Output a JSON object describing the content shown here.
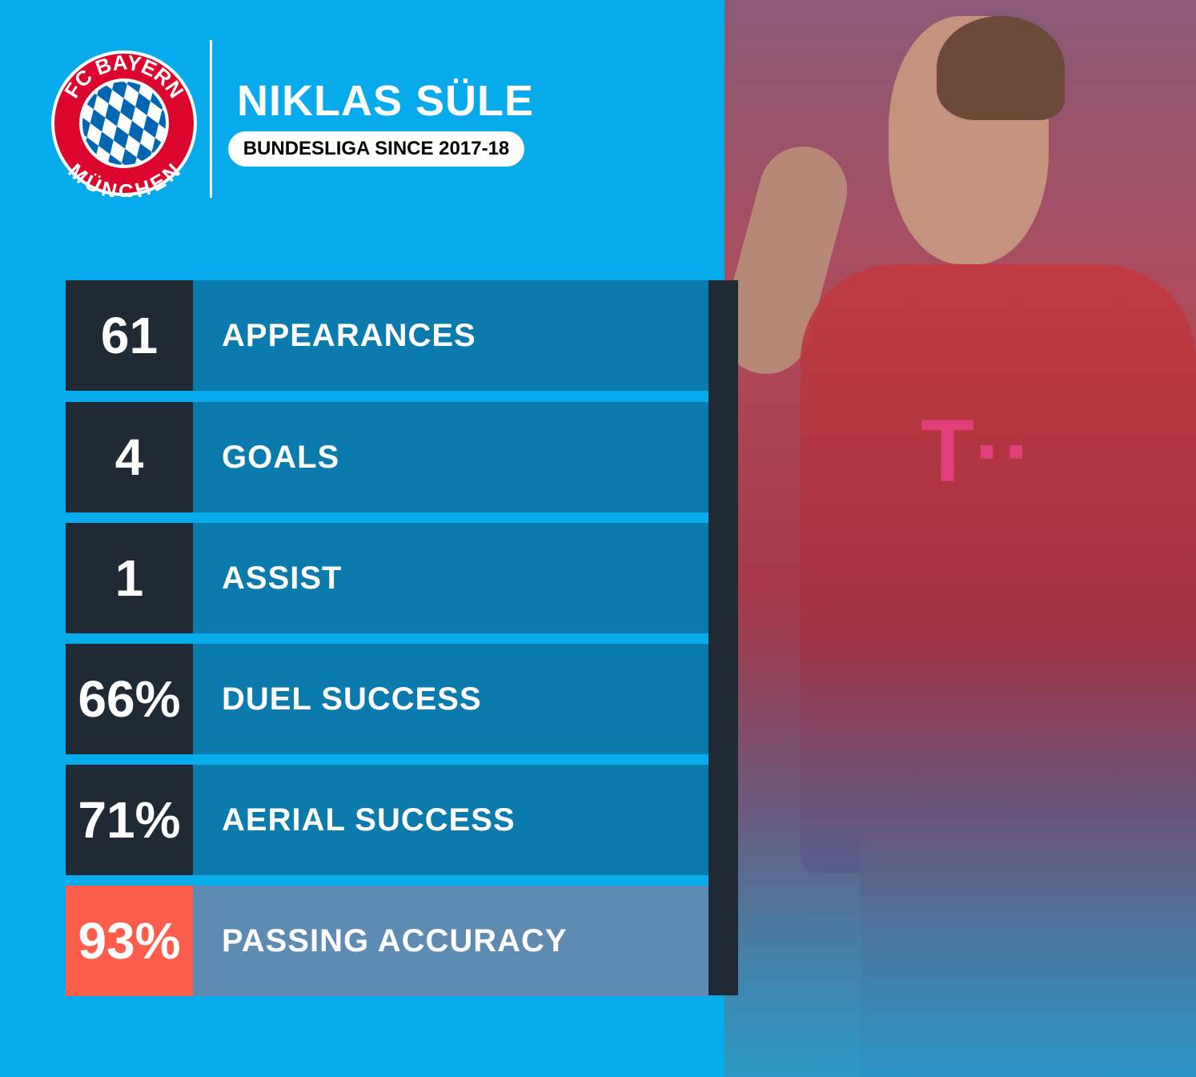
{
  "club": {
    "logo_text_top": "FC BAYERN",
    "logo_text_bottom": "MÜNCHEN",
    "colors": {
      "red": "#dc052d",
      "blue": "#0066b2"
    }
  },
  "player": {
    "name": "NIKLAS SÜLE",
    "subtitle": "BUNDESLIGA SINCE 2017-18"
  },
  "stats": [
    {
      "value": "61",
      "label": "APPEARANCES",
      "highlight": false
    },
    {
      "value": "4",
      "label": "GOALS",
      "highlight": false
    },
    {
      "value": "1",
      "label": "ASSIST",
      "highlight": false
    },
    {
      "value": "66%",
      "label": "DUEL SUCCESS",
      "highlight": false
    },
    {
      "value": "71%",
      "label": "AERIAL SUCCESS",
      "highlight": false
    },
    {
      "value": "93%",
      "label": "PASSING ACCURACY",
      "highlight": true
    }
  ],
  "colors": {
    "background": "#07aaea",
    "number_box": "#1f2a34",
    "label_box": "#0b7aad",
    "highlight_number": "#fe5d4c",
    "highlight_label": "#5e8bb2"
  }
}
